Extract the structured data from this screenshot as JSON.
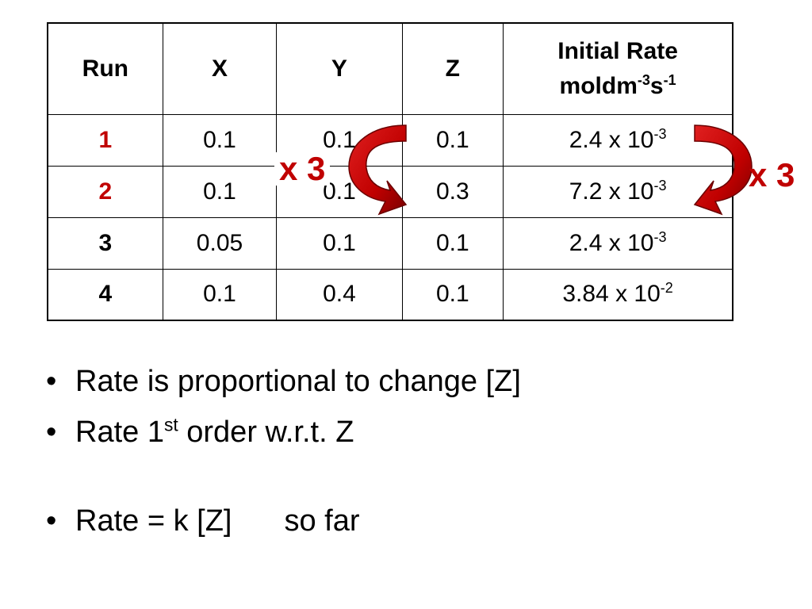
{
  "table": {
    "headers": {
      "run": "Run",
      "x": "X",
      "y": "Y",
      "z": "Z",
      "rate_line1": "Initial Rate",
      "rate_unit_base1": "moldm",
      "rate_unit_exp1": "-3",
      "rate_unit_base2": "s",
      "rate_unit_exp2": "-1"
    },
    "rows": [
      {
        "run": "1",
        "x": "0.1",
        "y": "0.1",
        "z": "0.1",
        "rate_mant": "2.4 x 10",
        "rate_exp": "-3",
        "run_color": "#c00000"
      },
      {
        "run": "2",
        "x": "0.1",
        "y": "0.1",
        "z": "0.3",
        "rate_mant": "7.2 x 10",
        "rate_exp": "-3",
        "run_color": "#c00000"
      },
      {
        "run": "3",
        "x": "0.05",
        "y": "0.1",
        "z": "0.1",
        "rate_mant": "2.4 x 10",
        "rate_exp": "-3",
        "run_color": "#000000"
      },
      {
        "run": "4",
        "x": "0.1",
        "y": "0.4",
        "z": "0.1",
        "rate_mant": "3.84 x 10",
        "rate_exp": "-2",
        "run_color": "#000000"
      }
    ]
  },
  "annotations": {
    "left_multiplier": "x 3",
    "right_multiplier": "x 3",
    "arrow_color": "#c00000"
  },
  "bullets": {
    "b1": "Rate is proportional to change [Z]",
    "b2_pre": "Rate 1",
    "b2_sup": "st",
    "b2_post": " order w.r.t. Z",
    "b3_main": "Rate = k [Z]",
    "b3_note": "so far"
  }
}
